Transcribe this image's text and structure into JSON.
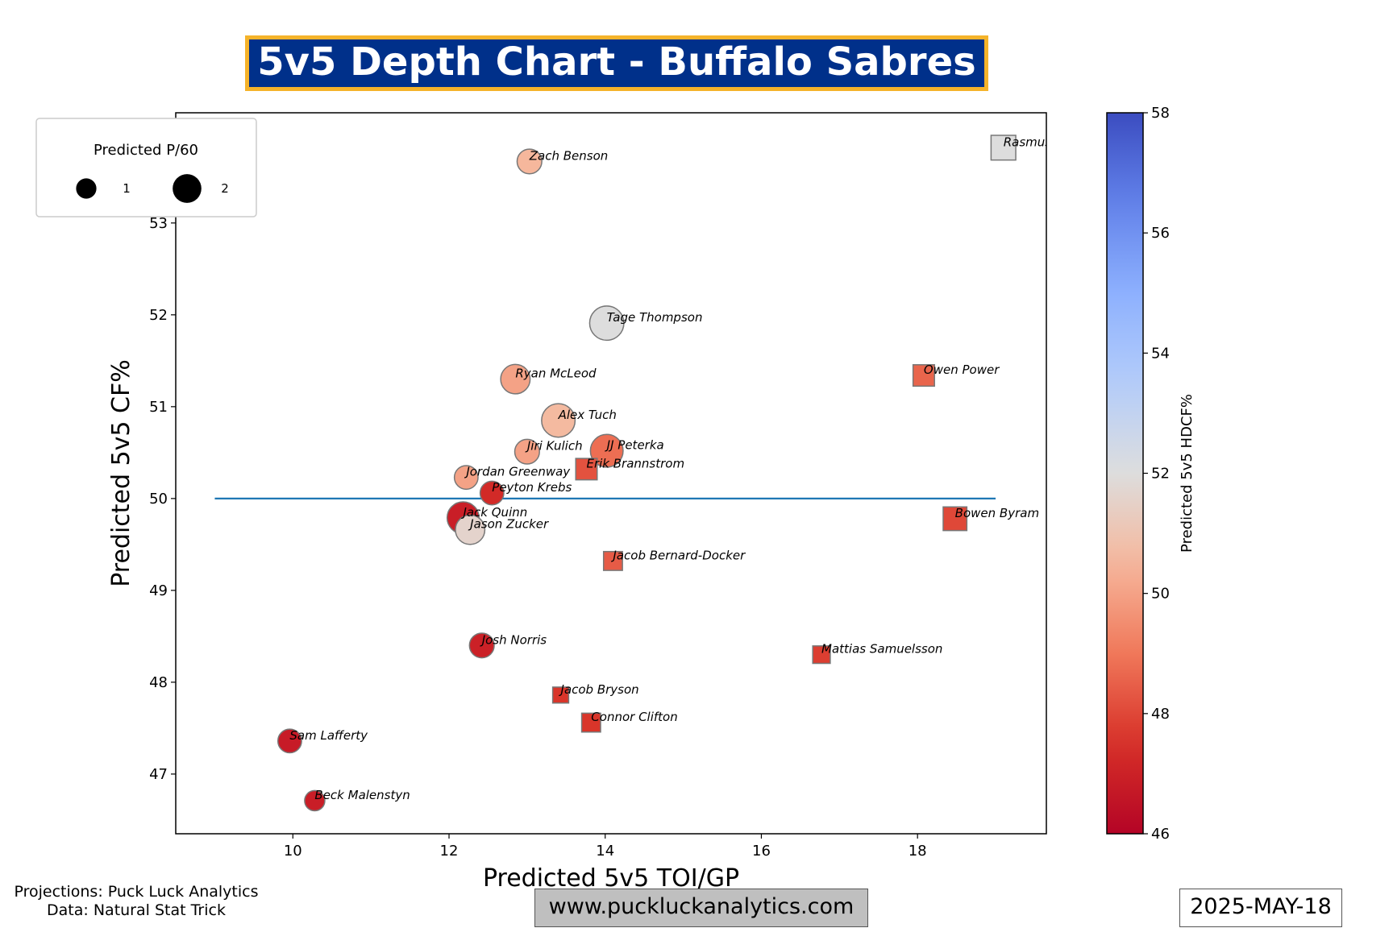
{
  "title": "5v5 Depth Chart - Buffalo Sabres",
  "footer": {
    "source_line1": "Projections: Puck Luck Analytics",
    "source_line2": "Data: Natural Stat Trick",
    "website": "www.puckluckanalytics.com",
    "date": "2025-MAY-18"
  },
  "colors": {
    "title_bg": "#00308A",
    "title_border": "#F5B32A",
    "reference_line": "#1f77b4"
  },
  "chart_data": {
    "type": "scatter",
    "title": "5v5 Depth Chart - Buffalo Sabres",
    "xlabel": "Predicted 5v5 TOI/GP",
    "ylabel": "Predicted 5v5 CF%",
    "xlim": [
      8.5,
      19.65
    ],
    "ylim": [
      46.35,
      54.2
    ],
    "xticks": [
      10,
      12,
      14,
      16,
      18
    ],
    "yticks": [
      47,
      48,
      49,
      50,
      51,
      52,
      53,
      54
    ],
    "grid": false,
    "reference_line": {
      "y": 50,
      "x_from": 9,
      "x_to": 19
    },
    "colorbar": {
      "label": "Predicted 5v5 HDCF%",
      "range": [
        46,
        58
      ],
      "ticks": [
        46,
        48,
        50,
        52,
        54,
        56,
        58
      ],
      "colormap": "coolwarm_r"
    },
    "size_legend": {
      "title": "Predicted P/60",
      "placement": "upper-left",
      "entries": [
        {
          "label": "1",
          "value": 1
        },
        {
          "label": "2",
          "value": 2
        }
      ]
    },
    "marker_encoding": {
      "circle": "forward",
      "square": "defense"
    },
    "points": [
      {
        "name": "Rasmus Dahlin",
        "x": 19.1,
        "y": 53.82,
        "hdcf": 52.0,
        "p60": 1.2,
        "shape": "square"
      },
      {
        "name": "Zach Benson",
        "x": 13.03,
        "y": 53.67,
        "hdcf": 50.5,
        "p60": 1.2,
        "shape": "circle"
      },
      {
        "name": "Tage Thompson",
        "x": 14.02,
        "y": 51.91,
        "hdcf": 52.0,
        "p60": 2.3,
        "shape": "circle"
      },
      {
        "name": "Owen Power",
        "x": 18.08,
        "y": 51.34,
        "hdcf": 48.6,
        "p60": 0.9,
        "shape": "square"
      },
      {
        "name": "Ryan McLeod",
        "x": 12.85,
        "y": 51.3,
        "hdcf": 50.0,
        "p60": 1.7,
        "shape": "circle"
      },
      {
        "name": "Alex Tuch",
        "x": 13.4,
        "y": 50.85,
        "hdcf": 50.6,
        "p60": 2.2,
        "shape": "circle"
      },
      {
        "name": "Jiri Kulich",
        "x": 13.0,
        "y": 50.51,
        "hdcf": 50.0,
        "p60": 1.2,
        "shape": "circle"
      },
      {
        "name": "JJ Peterka",
        "x": 14.02,
        "y": 50.52,
        "hdcf": 48.8,
        "p60": 2.1,
        "shape": "circle"
      },
      {
        "name": "Erik Brannstrom",
        "x": 13.76,
        "y": 50.32,
        "hdcf": 48.2,
        "p60": 0.9,
        "shape": "square"
      },
      {
        "name": "Jordan Greenway",
        "x": 12.22,
        "y": 50.23,
        "hdcf": 50.0,
        "p60": 1.1,
        "shape": "circle"
      },
      {
        "name": "Peyton Krebs",
        "x": 12.55,
        "y": 50.06,
        "hdcf": 47.3,
        "p60": 1.1,
        "shape": "circle"
      },
      {
        "name": "Jack Quinn",
        "x": 12.18,
        "y": 49.79,
        "hdcf": 46.9,
        "p60": 2.0,
        "shape": "circle"
      },
      {
        "name": "Jason Zucker",
        "x": 12.27,
        "y": 49.66,
        "hdcf": 51.6,
        "p60": 1.7,
        "shape": "circle"
      },
      {
        "name": "Bowen Byram",
        "x": 18.48,
        "y": 49.78,
        "hdcf": 48.0,
        "p60": 1.1,
        "shape": "square"
      },
      {
        "name": "Jacob Bernard-Docker",
        "x": 14.1,
        "y": 49.32,
        "hdcf": 48.4,
        "p60": 0.7,
        "shape": "square"
      },
      {
        "name": "Josh Norris",
        "x": 12.42,
        "y": 48.4,
        "hdcf": 47.0,
        "p60": 1.2,
        "shape": "circle"
      },
      {
        "name": "Mattias Samuelsson",
        "x": 16.77,
        "y": 48.3,
        "hdcf": 47.8,
        "p60": 0.6,
        "shape": "square"
      },
      {
        "name": "Jacob Bryson",
        "x": 13.43,
        "y": 47.86,
        "hdcf": 47.6,
        "p60": 0.5,
        "shape": "square"
      },
      {
        "name": "Connor Clifton",
        "x": 13.82,
        "y": 47.56,
        "hdcf": 47.6,
        "p60": 0.7,
        "shape": "square"
      },
      {
        "name": "Sam Lafferty",
        "x": 9.96,
        "y": 47.36,
        "hdcf": 46.8,
        "p60": 1.1,
        "shape": "circle"
      },
      {
        "name": "Beck Malenstyn",
        "x": 10.28,
        "y": 46.71,
        "hdcf": 46.9,
        "p60": 0.8,
        "shape": "circle"
      }
    ]
  }
}
